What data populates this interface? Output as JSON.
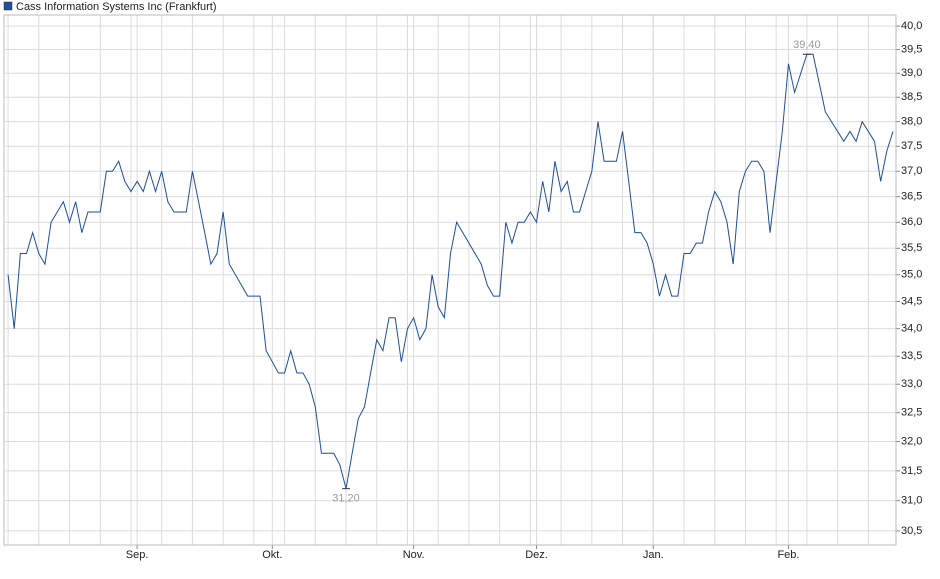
{
  "chart_data": {
    "type": "line",
    "series": [
      {
        "name": "Cass Information Systems Inc (Frankfurt)",
        "color": "#1f4e9c",
        "values": [
          35.0,
          34.0,
          35.4,
          35.4,
          35.8,
          35.4,
          35.2,
          36.0,
          36.2,
          36.4,
          36.0,
          36.4,
          35.8,
          36.2,
          36.2,
          36.2,
          37.0,
          37.0,
          37.2,
          36.8,
          36.6,
          36.8,
          36.6,
          37.0,
          36.6,
          37.0,
          36.4,
          36.2,
          36.2,
          36.2,
          37.0,
          36.4,
          35.8,
          35.2,
          35.4,
          36.2,
          35.2,
          35.0,
          34.8,
          34.6,
          34.6,
          34.6,
          33.6,
          33.4,
          33.2,
          33.2,
          33.6,
          33.2,
          33.2,
          33.0,
          32.6,
          31.8,
          31.8,
          31.8,
          31.6,
          31.2,
          31.8,
          32.4,
          32.6,
          33.2,
          33.8,
          33.6,
          34.2,
          34.2,
          33.4,
          34.0,
          34.2,
          33.8,
          34.0,
          35.0,
          34.4,
          34.2,
          35.4,
          36.0,
          35.8,
          35.6,
          35.4,
          35.2,
          34.8,
          34.6,
          34.6,
          36.0,
          35.6,
          36.0,
          36.0,
          36.2,
          36.0,
          36.8,
          36.2,
          37.2,
          36.6,
          36.8,
          36.2,
          36.2,
          36.6,
          37.0,
          38.0,
          37.2,
          37.2,
          37.2,
          37.8,
          36.8,
          35.8,
          35.8,
          35.6,
          35.2,
          34.6,
          35.0,
          34.6,
          34.6,
          35.4,
          35.4,
          35.6,
          35.6,
          36.2,
          36.6,
          36.4,
          36.0,
          35.2,
          36.6,
          37.0,
          37.2,
          37.2,
          37.0,
          35.8,
          36.8,
          37.8,
          39.2,
          38.6,
          39.0,
          39.4,
          39.4,
          38.8,
          38.2,
          38.0,
          37.8,
          37.6,
          37.8,
          37.6,
          38.0,
          37.8,
          37.6,
          36.8,
          37.4,
          37.8
        ]
      }
    ],
    "categories": [
      null,
      null,
      null,
      null,
      null,
      null,
      null,
      null,
      null,
      null,
      null,
      null,
      null,
      null,
      null,
      null,
      null,
      null,
      null,
      null,
      null,
      "Sep.",
      null,
      null,
      null,
      null,
      null,
      null,
      null,
      null,
      null,
      null,
      null,
      null,
      null,
      null,
      null,
      null,
      null,
      null,
      null,
      null,
      null,
      "Okt.",
      null,
      null,
      null,
      null,
      null,
      null,
      null,
      null,
      null,
      null,
      null,
      null,
      null,
      null,
      null,
      null,
      null,
      null,
      null,
      null,
      null,
      null,
      "Nov.",
      null,
      null,
      null,
      null,
      null,
      null,
      null,
      null,
      null,
      null,
      null,
      null,
      null,
      null,
      null,
      null,
      null,
      null,
      null,
      "Dez.",
      null,
      null,
      null,
      null,
      null,
      null,
      null,
      null,
      null,
      null,
      null,
      null,
      null,
      null,
      null,
      null,
      null,
      null,
      "Jan.",
      null,
      null,
      null,
      null,
      null,
      null,
      null,
      null,
      null,
      null,
      null,
      null,
      null,
      null,
      null,
      null,
      null,
      null,
      null,
      null,
      null,
      "Feb.",
      null,
      null,
      null,
      null,
      null,
      null,
      null,
      null,
      null,
      null,
      null,
      null,
      null,
      null,
      null,
      null,
      null
    ],
    "log_scale": true,
    "ylim": [
      30.27,
      40.24
    ],
    "yticks": [
      {
        "value": 30.5,
        "label": "30,5"
      },
      {
        "value": 31.0,
        "label": "31,0"
      },
      {
        "value": 31.5,
        "label": "31,5"
      },
      {
        "value": 32.0,
        "label": "32,0"
      },
      {
        "value": 32.5,
        "label": "32,5"
      },
      {
        "value": 33.0,
        "label": "33,0"
      },
      {
        "value": 33.5,
        "label": "33,5"
      },
      {
        "value": 34.0,
        "label": "34,0"
      },
      {
        "value": 34.5,
        "label": "34,5"
      },
      {
        "value": 35.0,
        "label": "35,0"
      },
      {
        "value": 35.5,
        "label": "35,5"
      },
      {
        "value": 36.0,
        "label": "36,0"
      },
      {
        "value": 36.5,
        "label": "36,5"
      },
      {
        "value": 37.0,
        "label": "37,0"
      },
      {
        "value": 37.5,
        "label": "37,5"
      },
      {
        "value": 38.0,
        "label": "38,0"
      },
      {
        "value": 38.5,
        "label": "38,5"
      },
      {
        "value": 39.0,
        "label": "39,0"
      },
      {
        "value": 39.5,
        "label": "39,5"
      },
      {
        "value": 40.0,
        "label": "40,0"
      }
    ],
    "grid": true,
    "legend": "top-left",
    "annotations": [
      {
        "label": "39,40",
        "value": 39.4
      },
      {
        "label": "31,20",
        "value": 31.2
      }
    ]
  }
}
